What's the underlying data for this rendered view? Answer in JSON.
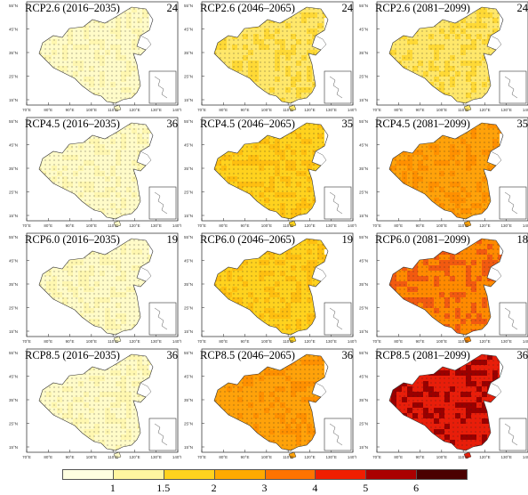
{
  "panels": [
    {
      "title": "RCP2.6 (2016–2035)",
      "count": "24",
      "level": 0
    },
    {
      "title": "RCP2.6 (2046–2065)",
      "count": "24",
      "level": 1
    },
    {
      "title": "RCP2.6 (2081–2099)",
      "count": "24",
      "level": 1
    },
    {
      "title": "RCP4.5 (2016–2035)",
      "count": "36",
      "level": 0
    },
    {
      "title": "RCP4.5 (2046–2065)",
      "count": "35",
      "level": 2
    },
    {
      "title": "RCP4.5 (2081–2099)",
      "count": "35",
      "level": 3
    },
    {
      "title": "RCP6.0 (2016–2035)",
      "count": "19",
      "level": 0
    },
    {
      "title": "RCP6.0 (2046–2065)",
      "count": "19",
      "level": 2
    },
    {
      "title": "RCP6.0 (2081–2099)",
      "count": "18",
      "level": 4
    },
    {
      "title": "RCP8.5 (2016–2035)",
      "count": "36",
      "level": 0
    },
    {
      "title": "RCP8.5 (2046–2065)",
      "count": "36",
      "level": 3
    },
    {
      "title": "RCP8.5 (2081–2099)",
      "count": "36",
      "level": 5
    }
  ],
  "lat_labels": [
    "55°N",
    "45°N",
    "35°N",
    "25°N",
    "15°N"
  ],
  "lon_labels": [
    "70°E",
    "80°E",
    "90°E",
    "100°E",
    "110°E",
    "120°E",
    "130°E",
    "140°E"
  ],
  "legend": {
    "colors": [
      "#ffffe0",
      "#fff5a0",
      "#ffd21e",
      "#ffaa00",
      "#ff7300",
      "#f01e00",
      "#aa0000",
      "#4b0000"
    ],
    "labels": [
      "1",
      "1.5",
      "2",
      "3",
      "4",
      "5",
      "6"
    ]
  },
  "level_palette": {
    "0": {
      "base": "#fffbc8",
      "alt": "#fff7b0"
    },
    "1": {
      "base": "#ffe76a",
      "alt": "#ffd935"
    },
    "2": {
      "base": "#ffd21e",
      "alt": "#ffbf10"
    },
    "3": {
      "base": "#ffa20a",
      "alt": "#ff9000"
    },
    "4": {
      "base": "#ff8a00",
      "alt": "#f25a10"
    },
    "5": {
      "base": "#e81e0a",
      "alt": "#9a0000"
    }
  }
}
